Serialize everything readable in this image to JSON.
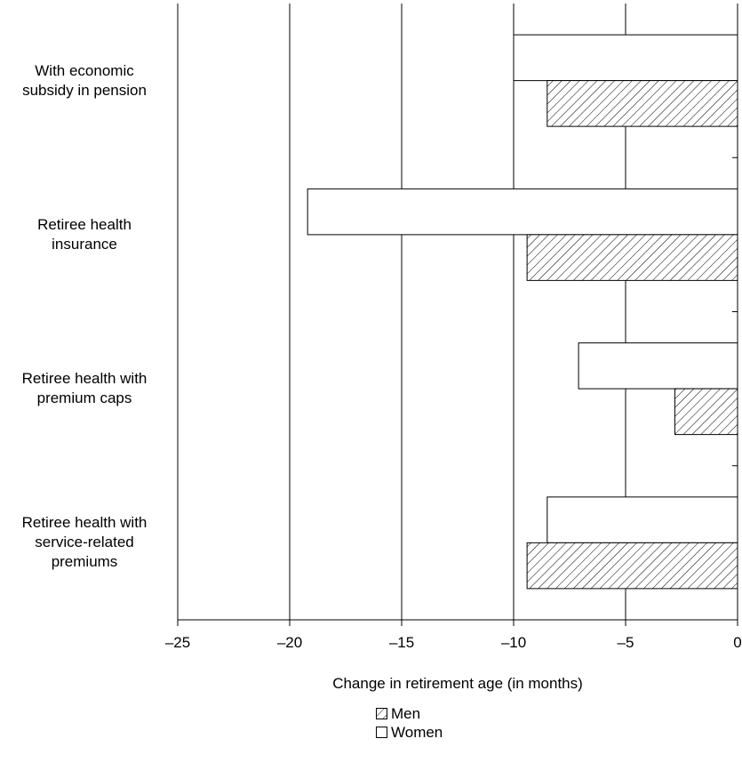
{
  "chart_data": {
    "type": "bar",
    "orientation": "horizontal",
    "categories": [
      "With economic\nsubsidy in pension",
      "Retiree health\ninsurance",
      "Retiree health with\npremium caps",
      "Retiree health with\nservice-related\npremiums"
    ],
    "series": [
      {
        "name": "Women",
        "values": [
          -10.0,
          -19.2,
          -7.1,
          -8.5
        ],
        "fill": "plain"
      },
      {
        "name": "Men",
        "values": [
          -8.5,
          -9.4,
          -2.8,
          -9.4
        ],
        "fill": "hatched"
      }
    ],
    "xlabel": "Change in retirement age (in months)",
    "xlim": [
      -25,
      0
    ],
    "xticks": [
      "–25",
      "–20",
      "–15",
      "–10",
      "–5",
      "0"
    ],
    "grid": "vertical",
    "legend": {
      "position": "bottom-center",
      "items": [
        "Men",
        "Women"
      ]
    }
  }
}
